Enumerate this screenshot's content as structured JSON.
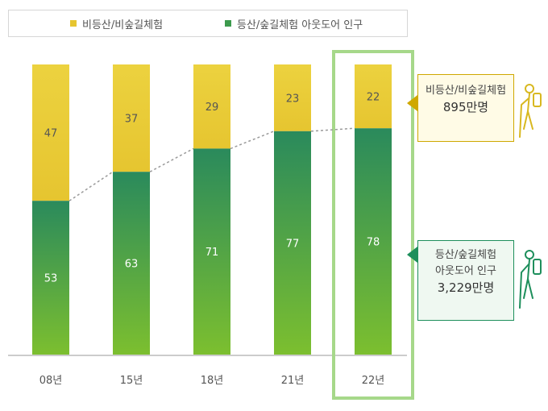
{
  "legend": {
    "non_hiking": "비등산/비숲길체험",
    "hiking": "등산/숲길체험 아웃도어 인구"
  },
  "colors": {
    "yellow_top": "#ecd23f",
    "yellow_bottom": "#e6c530",
    "green_top": "#2a8a5c",
    "green_bottom": "#7cbf2f",
    "highlight_border": "#a6d88a",
    "trend_line": "#9a9a9a"
  },
  "callouts": {
    "non_hiking_label": "비등산/비숲길체험",
    "non_hiking_value": "895만명",
    "hiking_label_line1": "등산/숲길체험",
    "hiking_label_line2": "아웃도어 인구",
    "hiking_value": "3,229만명"
  },
  "chart_data": {
    "type": "bar",
    "stacked": true,
    "categories": [
      "08년",
      "15년",
      "18년",
      "21년",
      "22년"
    ],
    "series": [
      {
        "name": "등산/숲길체험 아웃도어 인구",
        "values": [
          53,
          63,
          71,
          77,
          78
        ]
      },
      {
        "name": "비등산/비숲길체험",
        "values": [
          47,
          37,
          29,
          23,
          22
        ]
      }
    ],
    "ylim": [
      0,
      100
    ],
    "highlighted_category": "22년",
    "trend_line": "dashed line connecting tops of green segments",
    "title": "",
    "xlabel": "",
    "ylabel": ""
  }
}
